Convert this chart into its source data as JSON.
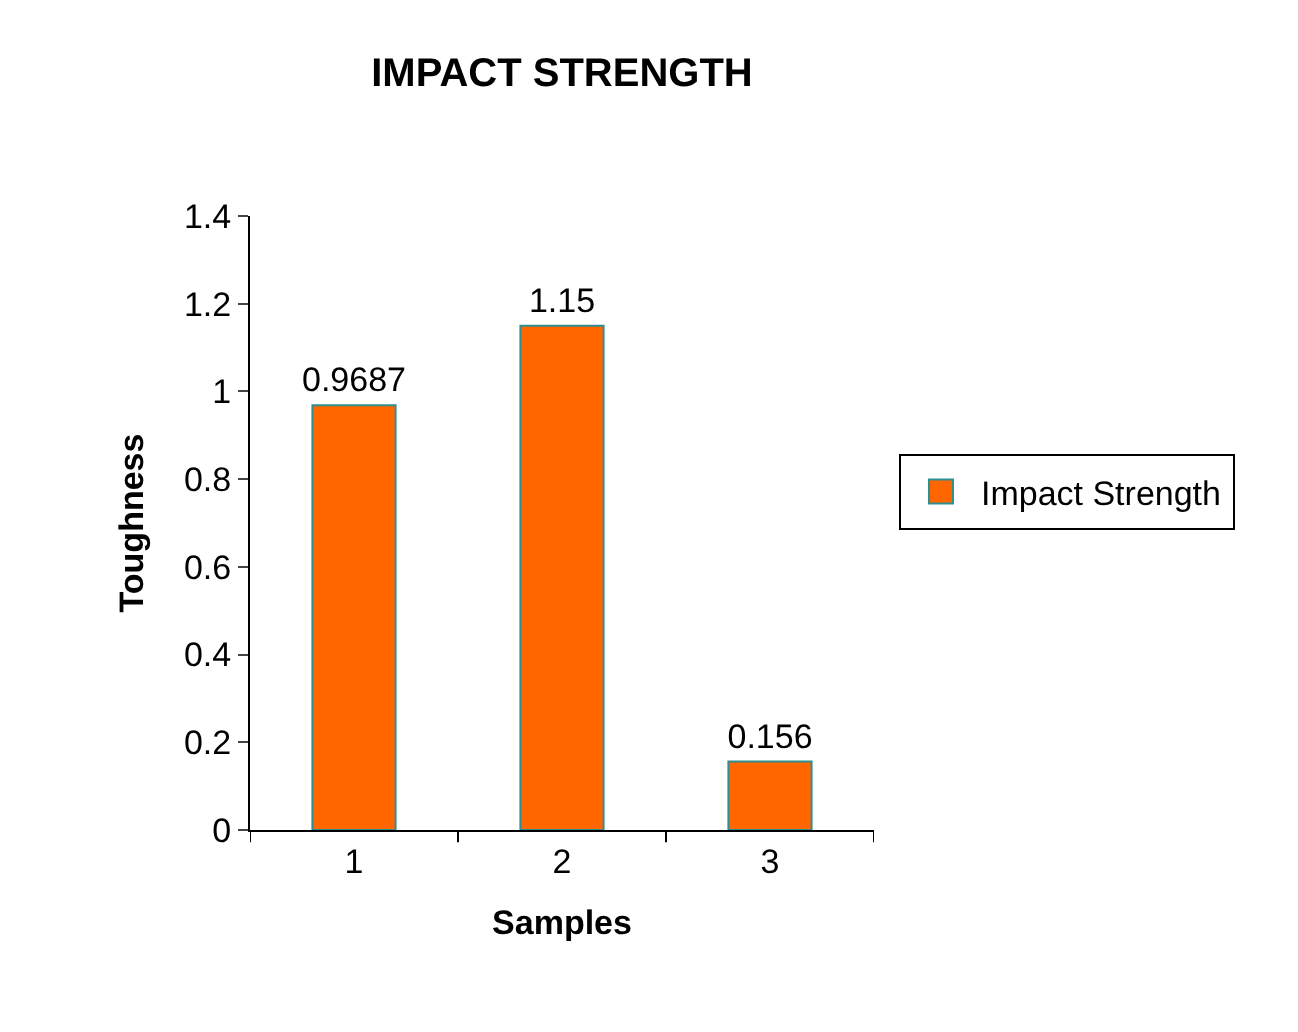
{
  "chart_data": {
    "type": "bar",
    "title": "IMPACT STRENGTH",
    "xlabel": "Samples",
    "ylabel": "Toughness",
    "categories": [
      "1",
      "2",
      "3"
    ],
    "series": [
      {
        "name": "Impact Strength",
        "color": "#ff6600",
        "values": [
          0.9687,
          1.15,
          0.156
        ]
      }
    ],
    "ylim": [
      0,
      1.4
    ],
    "yticks": [
      0,
      0.2,
      0.4,
      0.6,
      0.8,
      1,
      1.2,
      1.4
    ],
    "data_labels": true,
    "legend": "right"
  }
}
